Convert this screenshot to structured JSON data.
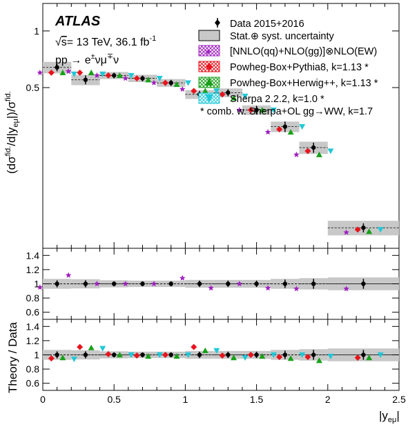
{
  "header": {
    "experiment": "ATLAS",
    "sqrt_s": "s",
    "energy_lumi": "= 13 TeV, 36.1 fb",
    "lumi_exp": "-1",
    "process": "pp → e±νμ∓ν"
  },
  "legend": {
    "data": "Data 2015+2016",
    "uncertainty": "Stat.⊕ syst. uncertainty",
    "nnlo": "[NNLO(qq)+NLO(gg)]⊗NLO(EW)",
    "pythia": "Powheg-Box+Pythia8, k=1.13 *",
    "herwig": "Powheg-Box+Herwig++, k=1.13 *",
    "sherpa": "Sherpa 2.2.2, k=1.0 *",
    "footnote": "* comb. w. Sherpa+OL gg→WW, k=1.7"
  },
  "axes": {
    "top_ylabel": "(dσfid./d|yeμ|)/σfid.",
    "ratio_ylabel": "Theory / Data",
    "xlabel": "|yeμ|"
  },
  "colors": {
    "nnlo": "#a020c0",
    "pythia": "#e8141e",
    "herwig": "#18a018",
    "sherpa": "#20c8d8",
    "band": "#c8c8c8"
  },
  "chart_data": [
    {
      "type": "scatter",
      "panel": "main",
      "bins": [
        0,
        0.2,
        0.4,
        0.6,
        0.8,
        1.0,
        1.2,
        1.4,
        1.6,
        1.8,
        2.0,
        2.5
      ],
      "ylim": [
        0.07,
        1.4
      ],
      "yscale": "log",
      "yticks": [
        0.5,
        1
      ],
      "ytick_labels": [
        "0.5",
        "1"
      ],
      "xlim": [
        0,
        2.5
      ],
      "xticks": [
        0,
        0.5,
        1,
        1.5,
        2,
        2.5
      ],
      "xtick_labels": [
        "0",
        "0.5",
        "1",
        "1.5",
        "2",
        "2.5"
      ],
      "data": {
        "values": [
          0.64,
          0.55,
          0.58,
          0.56,
          0.53,
          0.46,
          0.47,
          0.38,
          0.31,
          0.24,
          0.09
        ],
        "errors": [
          0.03,
          0.03,
          0.02,
          0.02,
          0.02,
          0.02,
          0.02,
          0.02,
          0.02,
          0.015,
          0.005
        ],
        "band": [
          0.045,
          0.035,
          0.025,
          0.025,
          0.025,
          0.025,
          0.025,
          0.022,
          0.02,
          0.018,
          0.008
        ]
      },
      "series": [
        {
          "name": "[NNLO(qq)+NLO(gg)]⊗NLO(EW)",
          "marker": "star",
          "values": [
            0.6,
            0.61,
            0.58,
            0.56,
            0.53,
            0.49,
            0.44,
            0.38,
            0.29,
            0.22,
            0.085
          ]
        },
        {
          "name": "Powheg-Box+Pythia8, k=1.13 *",
          "marker": "diamond",
          "values": [
            0.6,
            0.6,
            0.58,
            0.56,
            0.53,
            0.48,
            0.46,
            0.38,
            0.3,
            0.23,
            0.088
          ]
        },
        {
          "name": "Powheg-Box+Herwig++, k=1.13 *",
          "marker": "triangle-up",
          "values": [
            0.6,
            0.6,
            0.58,
            0.55,
            0.52,
            0.48,
            0.44,
            0.38,
            0.29,
            0.22,
            0.086
          ]
        },
        {
          "name": "Sherpa 2.2.2, k=1.0 *",
          "marker": "triangle-down",
          "values": [
            0.59,
            0.59,
            0.58,
            0.56,
            0.53,
            0.48,
            0.45,
            0.38,
            0.31,
            0.23,
            0.088
          ]
        }
      ]
    },
    {
      "type": "scatter",
      "panel": "ratio-nnlo",
      "bins": [
        0,
        0.2,
        0.4,
        0.6,
        0.8,
        1.0,
        1.2,
        1.4,
        1.6,
        1.8,
        2.0,
        2.5
      ],
      "ylim": [
        0.5,
        1.5
      ],
      "yticks": [
        0.6,
        0.8,
        1,
        1.2,
        1.4
      ],
      "ytick_labels": [
        "0.6",
        "0.8",
        "1",
        "1.2",
        "1.4"
      ],
      "data": {
        "values": [
          1,
          1,
          1,
          1,
          1,
          1,
          1,
          1,
          1,
          1,
          1
        ],
        "errors": [
          0.05,
          0.05,
          0.035,
          0.035,
          0.035,
          0.045,
          0.045,
          0.045,
          0.06,
          0.07,
          0.07
        ],
        "band": [
          0.07,
          0.065,
          0.05,
          0.045,
          0.045,
          0.055,
          0.055,
          0.055,
          0.07,
          0.08,
          0.09
        ]
      },
      "series": [
        {
          "name": "[NNLO(qq)+NLO(gg)]⊗NLO(EW)",
          "marker": "star",
          "values": [
            0.95,
            1.12,
            1.0,
            1.0,
            1.0,
            1.08,
            0.94,
            1.0,
            0.94,
            0.93,
            0.93
          ]
        }
      ]
    },
    {
      "type": "scatter",
      "panel": "ratio-mc",
      "bins": [
        0,
        0.2,
        0.4,
        0.6,
        0.8,
        1.0,
        1.2,
        1.4,
        1.6,
        1.8,
        2.0,
        2.5
      ],
      "ylim": [
        0.5,
        1.5
      ],
      "yticks": [
        0.6,
        0.8,
        1,
        1.2,
        1.4
      ],
      "ytick_labels": [
        "0.6",
        "0.8",
        "1",
        "1.2",
        "1.4"
      ],
      "data": {
        "values": [
          1,
          1,
          1,
          1,
          1,
          1,
          1,
          1,
          1,
          1,
          1
        ],
        "errors": [
          0.05,
          0.05,
          0.035,
          0.035,
          0.035,
          0.045,
          0.045,
          0.045,
          0.06,
          0.07,
          0.07
        ],
        "band": [
          0.07,
          0.065,
          0.05,
          0.045,
          0.045,
          0.055,
          0.055,
          0.055,
          0.07,
          0.08,
          0.09
        ]
      },
      "series": [
        {
          "name": "Powheg-Box+Pythia8, k=1.13 *",
          "marker": "diamond",
          "values": [
            0.95,
            1.11,
            1.01,
            0.99,
            1.0,
            1.11,
            0.99,
            1.0,
            0.97,
            0.97,
            0.96
          ]
        },
        {
          "name": "Powheg-Box+Herwig++, k=1.13 *",
          "marker": "triangle-up",
          "values": [
            0.96,
            1.1,
            1.0,
            0.98,
            0.98,
            1.06,
            0.96,
            0.98,
            0.95,
            0.92,
            0.96
          ]
        },
        {
          "name": "Sherpa 2.2.2, k=1.0 *",
          "marker": "triangle-down",
          "values": [
            0.94,
            1.09,
            1.0,
            1.0,
            1.0,
            1.06,
            0.96,
            1.0,
            1.0,
            0.98,
            1.0
          ]
        }
      ]
    }
  ]
}
